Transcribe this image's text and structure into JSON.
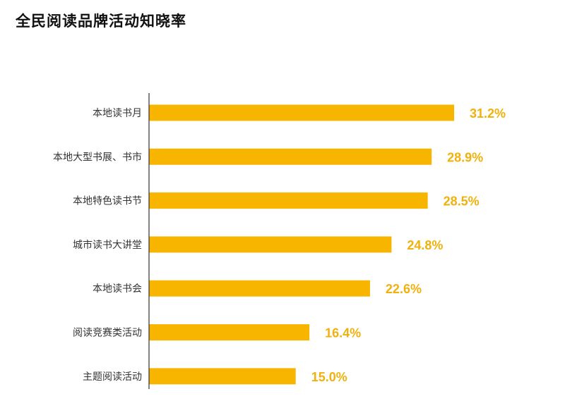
{
  "chart_data": {
    "type": "bar",
    "orientation": "horizontal",
    "title": "全民阅读品牌活动知晓率",
    "categories": [
      "本地读书月",
      "本地大型书展、书市",
      "本地特色读书节",
      "城市读书大讲堂",
      "本地读书会",
      "阅读竞赛类活动",
      "主题阅读活动"
    ],
    "values": [
      31.2,
      28.9,
      28.5,
      24.8,
      22.6,
      16.4,
      15.0
    ],
    "value_labels": [
      "31.2%",
      "28.9%",
      "28.5%",
      "24.8%",
      "22.6%",
      "16.4%",
      "15.0%"
    ],
    "xlim": [
      0,
      31.2
    ],
    "grid": false,
    "legend": "none",
    "colors": {
      "bar": "#F7B500",
      "value_label": "#F1B10C",
      "axis": "#333333",
      "category_label": "#333333",
      "title": "#111111"
    }
  }
}
